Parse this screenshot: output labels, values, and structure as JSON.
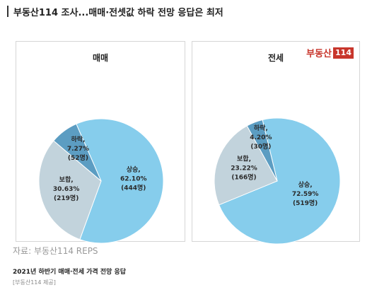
{
  "headline": "부동산114 조사...매매·전셋값 하락 전망 응답은 최저",
  "logo": {
    "text": "부동산",
    "box": "114"
  },
  "colors": {
    "up": "#86cdec",
    "flat": "#c2d3dc",
    "down": "#5c9dc2"
  },
  "chart_data": [
    {
      "type": "pie",
      "title": "매매",
      "slices": [
        {
          "name": "상승",
          "percent": 62.1,
          "count": 444,
          "pct_label": "62.10%",
          "count_label": "(444명)"
        },
        {
          "name": "보합",
          "percent": 30.63,
          "count": 219,
          "pct_label": "30.63%",
          "count_label": "(219명)"
        },
        {
          "name": "하락",
          "percent": 7.27,
          "count": 52,
          "pct_label": "7.27%",
          "count_label": "(52명)"
        }
      ]
    },
    {
      "type": "pie",
      "title": "전세",
      "slices": [
        {
          "name": "상승",
          "percent": 72.59,
          "count": 519,
          "pct_label": "72.59%",
          "count_label": "(519명)"
        },
        {
          "name": "보합",
          "percent": 23.22,
          "count": 166,
          "pct_label": "23.22%",
          "count_label": "(166명)"
        },
        {
          "name": "하락",
          "percent": 4.2,
          "count": 30,
          "pct_label": "4.20%",
          "count_label": "(30명)"
        }
      ]
    }
  ],
  "source": "자료: 부동산114 REPS",
  "caption": "2021년 하반기 매매·전세 가격 전망 응답",
  "credit": "[부동산114 제공]"
}
